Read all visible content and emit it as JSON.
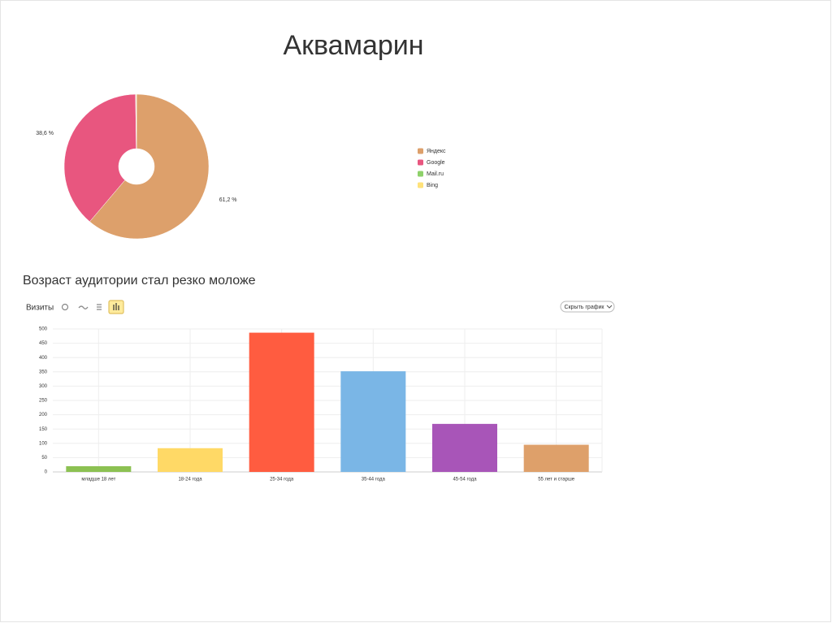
{
  "title": "Аквамарин",
  "chart_data": [
    {
      "type": "pie",
      "categories": [
        "Яндекс",
        "Google",
        "Mail.ru",
        "Bing"
      ],
      "values": [
        61.2,
        38.6,
        0.1,
        0.1
      ],
      "value_labels": [
        "61,2 %",
        "38,6 %",
        null,
        null
      ],
      "colors": [
        "#dda06b",
        "#e8567f",
        "#8ed16a",
        "#ffe27a"
      ],
      "legend": "right"
    },
    {
      "type": "bar",
      "title": "Возраст аудитории стал резко моложе",
      "ylabel": "Визиты",
      "button": "Скрыть график",
      "categories": [
        "младше 18 лет",
        "18-24 года",
        "25-34 года",
        "35-44 года",
        "45-54 года",
        "55 лет и старше"
      ],
      "values": [
        20,
        83,
        487,
        352,
        168,
        95
      ],
      "colors": [
        "#8cc152",
        "#ffd966",
        "#ff5c40",
        "#7ab6e6",
        "#a855b8",
        "#dea06a"
      ],
      "ylim": [
        0,
        500
      ],
      "yticks": [
        0,
        50,
        100,
        150,
        200,
        250,
        300,
        350,
        400,
        450,
        500
      ],
      "grid": true
    }
  ]
}
